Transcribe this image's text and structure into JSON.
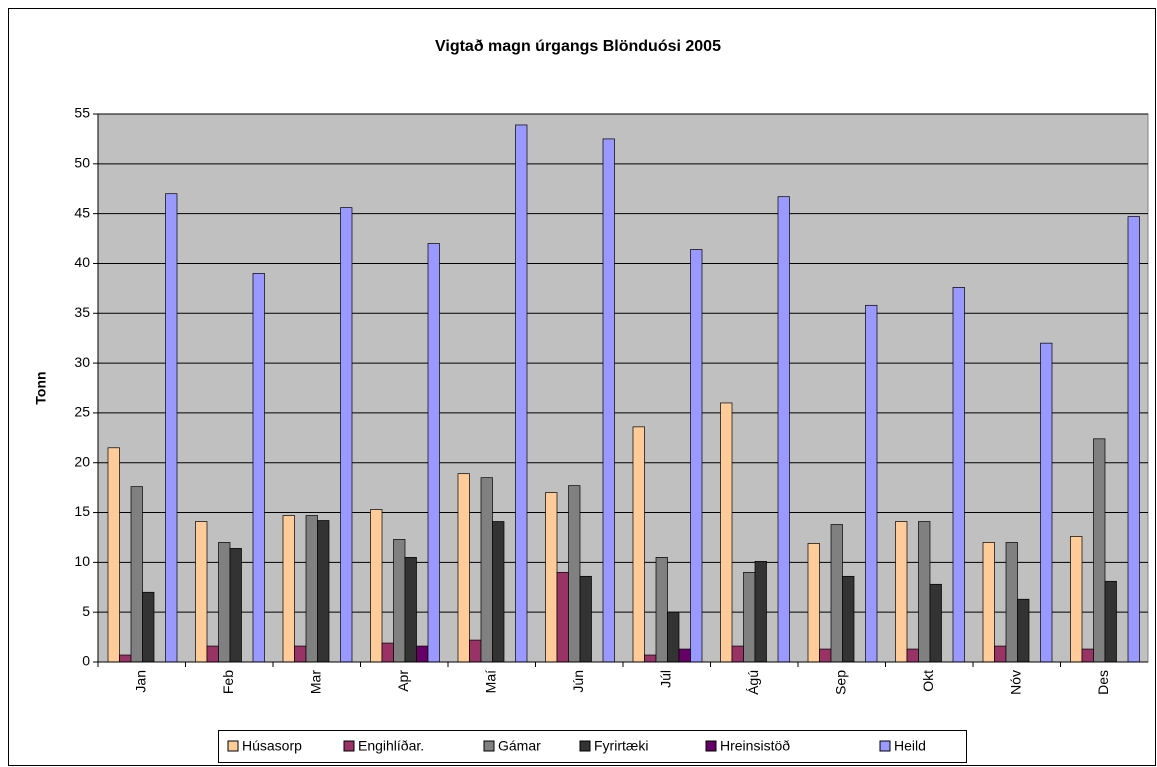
{
  "chart_data": {
    "type": "bar",
    "title": "Vigtað magn úrgangs Blönduósi 2005",
    "y_label": "Tonn",
    "categories": [
      "Jan",
      "Feb",
      "Mar",
      "Apr",
      "Maí",
      "Jún",
      "Júl",
      "Ágú",
      "Sep",
      "Okt",
      "Nóv",
      "Des"
    ],
    "series": [
      {
        "name": "Húsasorp",
        "color": "#ffcc99",
        "values": [
          21.5,
          14.1,
          14.7,
          15.3,
          18.9,
          17,
          23.6,
          26,
          11.9,
          14.1,
          12,
          12.6
        ]
      },
      {
        "name": "Engihlíðar.",
        "color": "#993366",
        "values": [
          0.7,
          1.6,
          1.6,
          1.9,
          2.2,
          9,
          0.7,
          1.6,
          1.3,
          1.3,
          1.6,
          1.3
        ]
      },
      {
        "name": "Gámar",
        "color": "#808080",
        "values": [
          17.6,
          12,
          14.7,
          12.3,
          18.5,
          17.7,
          10.5,
          9,
          13.8,
          14.1,
          12,
          22.4
        ]
      },
      {
        "name": "Fyrirtæki",
        "color": "#333333",
        "values": [
          7,
          11.4,
          14.2,
          10.5,
          14.1,
          8.6,
          5,
          10.1,
          8.6,
          7.8,
          6.3,
          8.1
        ]
      },
      {
        "name": "Hreinsistöð",
        "color": "#660066",
        "values": [
          0,
          0,
          0,
          1.6,
          0,
          0,
          1.3,
          0,
          0,
          0,
          0,
          0
        ]
      },
      {
        "name": "Heild",
        "color": "#9999ff",
        "values": [
          47,
          39,
          45.6,
          42,
          53.9,
          52.5,
          41.4,
          46.7,
          35.8,
          37.6,
          32,
          44.7
        ]
      }
    ],
    "ylim": [
      0,
      55
    ],
    "yticks": [
      0,
      5,
      10,
      15,
      20,
      25,
      30,
      35,
      40,
      45,
      50,
      55
    ],
    "grid": true,
    "plot_background": "#c0c0c0",
    "legend": "bottom"
  }
}
